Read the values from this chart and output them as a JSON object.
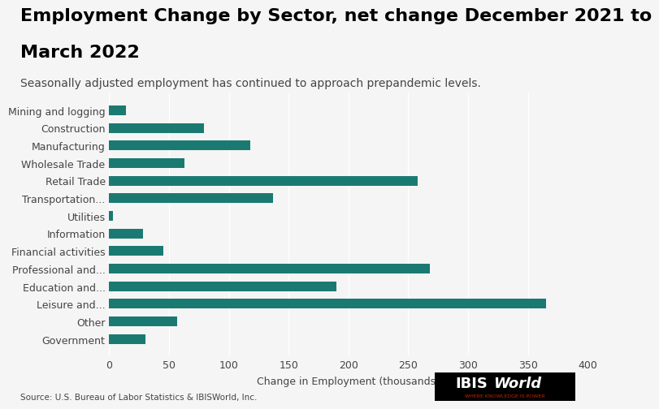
{
  "title_line1": "Employment Change by Sector, net change December 2021 to",
  "title_line2": "March 2022",
  "subtitle": "Seasonally adjusted employment has continued to approach prepandemic levels.",
  "categories": [
    "Government",
    "Other",
    "Leisure and...",
    "Education and...",
    "Professional and...",
    "Financial activities",
    "Information",
    "Utilities",
    "Transportation...",
    "Retail Trade",
    "Wholesale Trade",
    "Manufacturing",
    "Construction",
    "Mining and logging"
  ],
  "values": [
    30,
    57,
    365,
    190,
    268,
    45,
    28,
    3,
    137,
    258,
    63,
    118,
    79,
    14
  ],
  "bar_color": "#1a7a72",
  "background_color": "#f0f0f0",
  "xlabel": "Change in Employment (thousands)",
  "xlim": [
    0,
    400
  ],
  "xticks": [
    0,
    50,
    100,
    150,
    200,
    250,
    300,
    350,
    400
  ],
  "source_text": "Source: U.S. Bureau of Labor Statistics & IBISWorld, Inc.",
  "title_fontsize": 16,
  "subtitle_fontsize": 10,
  "label_fontsize": 9,
  "tick_fontsize": 9
}
